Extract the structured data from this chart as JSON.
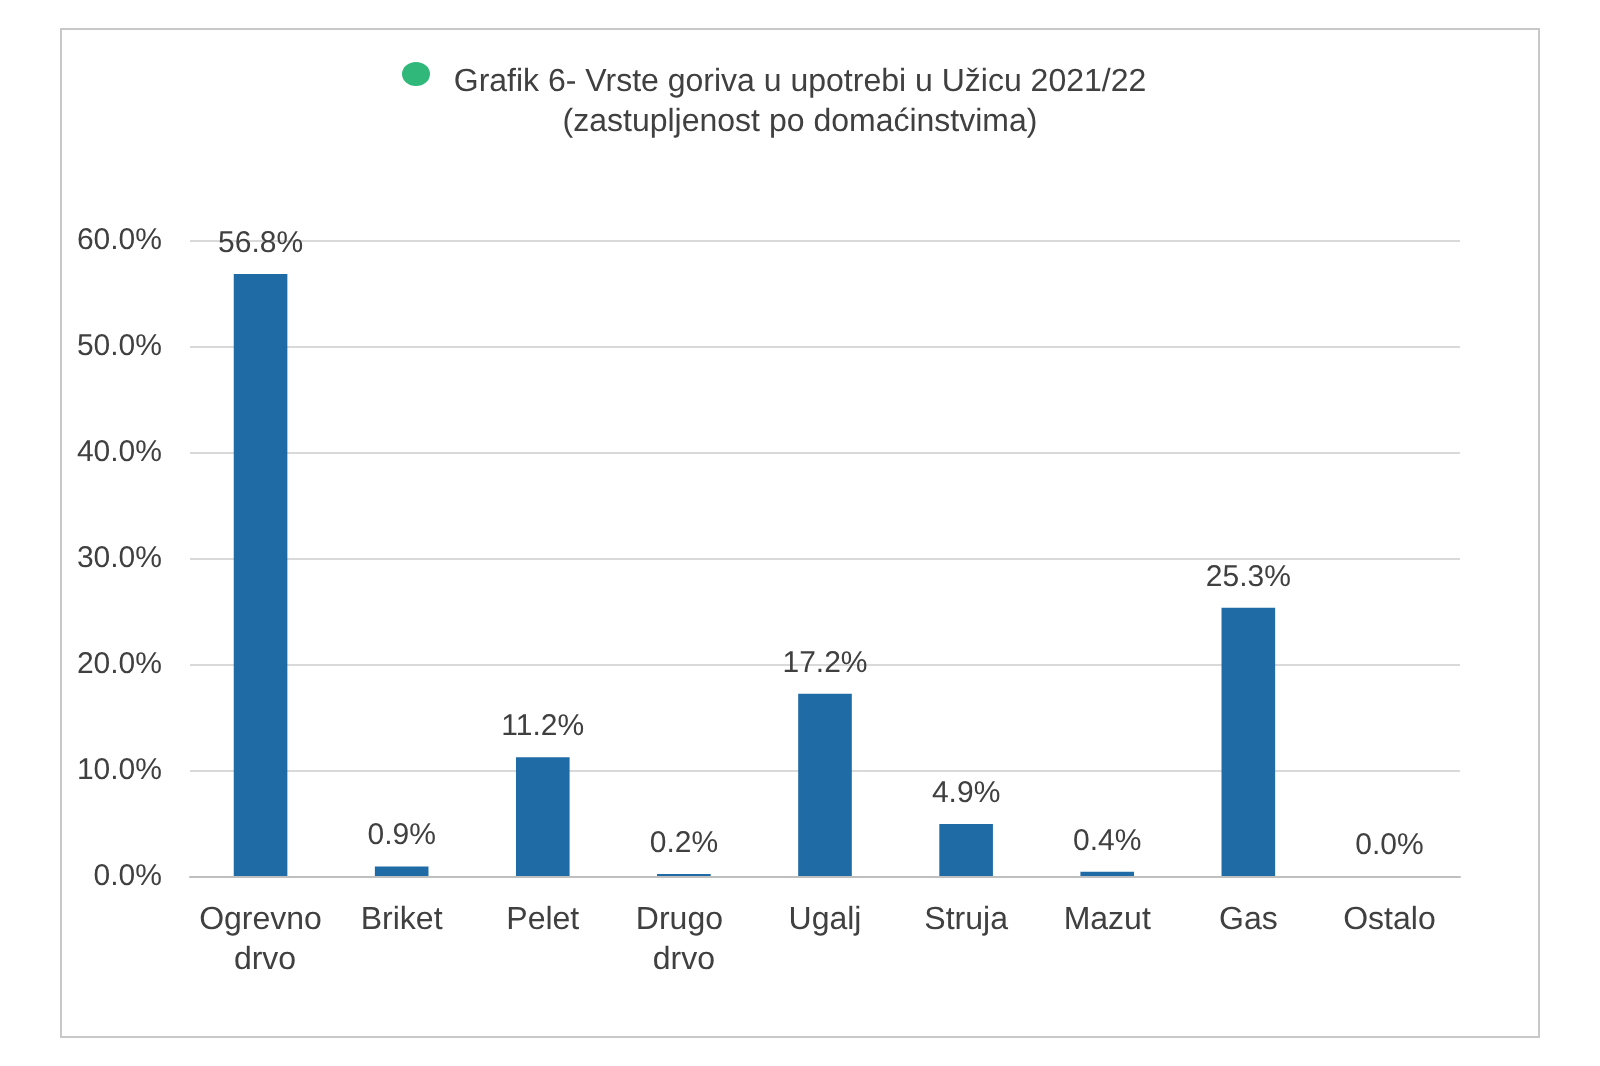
{
  "chart_data": {
    "type": "bar",
    "title": "Grafik 6- Vrste goriva u upotrebi u Užicu 2021/22",
    "subtitle": "(zastupljenost po domaćinstvima)",
    "categories": [
      "Ogrevno drvo",
      "Briket",
      "Pelet",
      "Drugo drvo",
      "Ugalj",
      "Struja",
      "Mazut",
      "Gas",
      "Ostalo"
    ],
    "values": [
      56.8,
      0.9,
      11.2,
      0.2,
      17.2,
      4.9,
      0.4,
      25.3,
      0.0
    ],
    "color": "#1f6ba6",
    "value_labels": [
      "56.8%",
      "0.9%",
      "11.2%",
      "0.2%",
      "17.2%",
      "4.9%",
      "0.4%",
      "25.3%",
      "0.0%"
    ],
    "ylim": [
      0,
      60
    ],
    "yticks": [
      {
        "value": 0,
        "label": "0.0%"
      },
      {
        "value": 10,
        "label": "10.0%"
      },
      {
        "value": 20,
        "label": "20.0%"
      },
      {
        "value": 30,
        "label": "30.0%"
      },
      {
        "value": 40,
        "label": "40.0%"
      },
      {
        "value": 50,
        "label": "50.0%"
      },
      {
        "value": 60,
        "label": "60.0%"
      }
    ],
    "grid": "y"
  }
}
